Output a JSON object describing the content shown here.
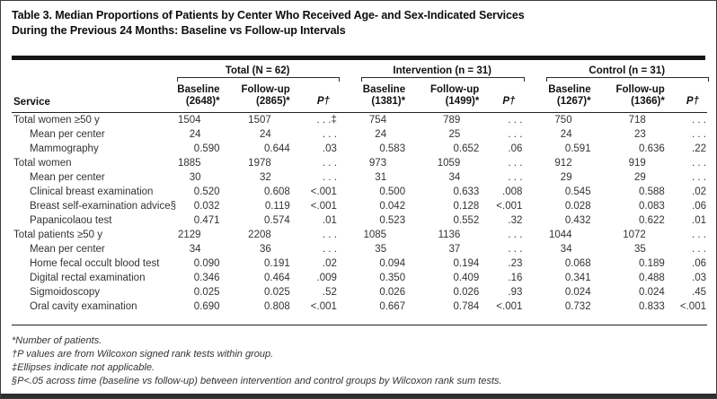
{
  "title": {
    "line1": "Table 3. Median Proportions of Patients by Center Who Received Age- and Sex-Indicated Services",
    "line2": "During the Previous 24 Months: Baseline vs Follow-up Intervals"
  },
  "table": {
    "service_header": "Service",
    "groups": [
      {
        "label": "Total (N = 62)"
      },
      {
        "label": "Intervention (n = 31)"
      },
      {
        "label": "Control (n = 31)"
      }
    ],
    "subheaders": [
      {
        "line1": "Baseline",
        "line2": "(2648)*"
      },
      {
        "line1": "Follow-up",
        "line2": "(2865)*"
      },
      {
        "p": "P†"
      },
      {
        "line1": "Baseline",
        "line2": "(1381)*"
      },
      {
        "line1": "Follow-up",
        "line2": "(1499)*"
      },
      {
        "p": "P†"
      },
      {
        "line1": "Baseline",
        "line2": "(1267)*"
      },
      {
        "line1": "Follow-up",
        "line2": "(1366)*"
      },
      {
        "p": "P†"
      }
    ],
    "rows": [
      {
        "label": "Total women ≥50 y",
        "indent": false,
        "values": [
          "1504",
          "1507",
          ". . .‡",
          "754",
          "789",
          ". . .",
          "750",
          "718",
          ". . ."
        ]
      },
      {
        "label": "Mean per center",
        "indent": true,
        "values": [
          "24",
          "24",
          ". . .",
          "24",
          "25",
          ". . .",
          "24",
          "23",
          ". . ."
        ]
      },
      {
        "label": "Mammography",
        "indent": true,
        "values": [
          "0.590",
          "0.644",
          ".03",
          "0.583",
          "0.652",
          ".06",
          "0.591",
          "0.636",
          ".22"
        ]
      },
      {
        "label": "Total women",
        "indent": false,
        "values": [
          "1885",
          "1978",
          ". . .",
          "973",
          "1059",
          ". . .",
          "912",
          "919",
          ". . ."
        ]
      },
      {
        "label": "Mean per center",
        "indent": true,
        "values": [
          "30",
          "32",
          ". . .",
          "31",
          "34",
          ". . .",
          "29",
          "29",
          ". . ."
        ]
      },
      {
        "label": "Clinical breast examination",
        "indent": true,
        "values": [
          "0.520",
          "0.608",
          "<.001",
          "0.500",
          "0.633",
          ".008",
          "0.545",
          "0.588",
          ".02"
        ]
      },
      {
        "label": "Breast self-examination advice§",
        "indent": true,
        "values": [
          "0.032",
          "0.119",
          "<.001",
          "0.042",
          "0.128",
          "<.001",
          "0.028",
          "0.083",
          ".06"
        ]
      },
      {
        "label": "Papanicolaou test",
        "indent": true,
        "values": [
          "0.471",
          "0.574",
          ".01",
          "0.523",
          "0.552",
          ".32",
          "0.432",
          "0.622",
          ".01"
        ]
      },
      {
        "label": "Total patients ≥50 y",
        "indent": false,
        "values": [
          "2129",
          "2208",
          ". . .",
          "1085",
          "1136",
          ". . .",
          "1044",
          "1072",
          ". . ."
        ]
      },
      {
        "label": "Mean per center",
        "indent": true,
        "values": [
          "34",
          "36",
          ". . .",
          "35",
          "37",
          ". . .",
          "34",
          "35",
          ". . ."
        ]
      },
      {
        "label": "Home fecal occult blood test",
        "indent": true,
        "values": [
          "0.090",
          "0.191",
          ".02",
          "0.094",
          "0.194",
          ".23",
          "0.068",
          "0.189",
          ".06"
        ]
      },
      {
        "label": "Digital rectal examination",
        "indent": true,
        "values": [
          "0.346",
          "0.464",
          ".009",
          "0.350",
          "0.409",
          ".16",
          "0.341",
          "0.488",
          ".03"
        ]
      },
      {
        "label": "Sigmoidoscopy",
        "indent": true,
        "values": [
          "0.025",
          "0.025",
          ".52",
          "0.026",
          "0.026",
          ".93",
          "0.024",
          "0.024",
          ".45"
        ]
      },
      {
        "label": "Oral cavity examination",
        "indent": true,
        "values": [
          "0.690",
          "0.808",
          "<.001",
          "0.667",
          "0.784",
          "<.001",
          "0.732",
          "0.833",
          "<.001"
        ]
      }
    ]
  },
  "footnotes": [
    "*Number of patients.",
    "†P values are from Wilcoxon signed rank tests within group.",
    "‡Ellipses indicate not applicable.",
    "§P<.05 across time (baseline vs follow-up) between intervention and control groups by Wilcoxon rank sum tests."
  ]
}
